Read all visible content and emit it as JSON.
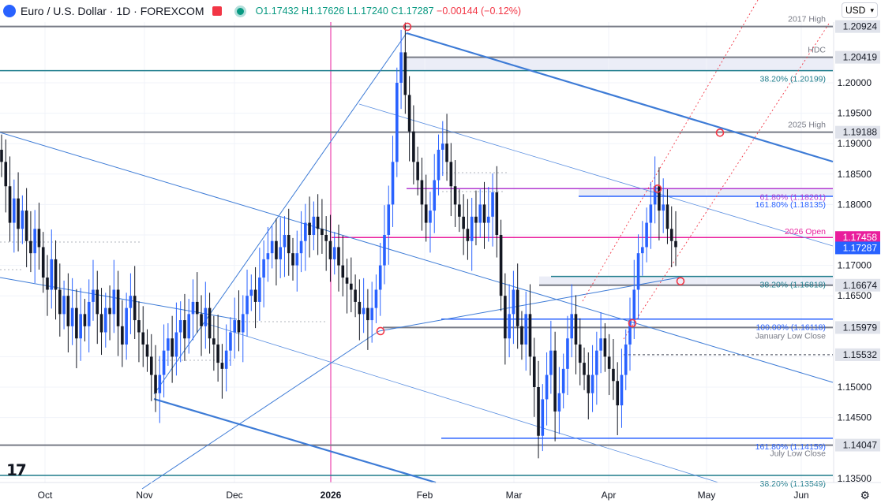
{
  "header": {
    "symbol": "Euro / U.S. Dollar · 1D · FOREXCOM",
    "open": "O1.17432",
    "high": "H1.17626",
    "low": "L1.17240",
    "close": "C1.17287",
    "change": "−0.00144 (−0.12%)",
    "currency": "USD"
  },
  "colors": {
    "up": "#2962ff",
    "down": "#131722",
    "magenta": "#e91e9c",
    "teal": "#1e7c8c",
    "level_gray": "#787b86",
    "trend_blue": "#3d7bd6"
  },
  "chart_data": {
    "type": "candlestick",
    "title": "",
    "ylim": [
      1.132,
      1.211
    ],
    "x_labels": [
      "Oct",
      "Nov",
      "Dec",
      "2026",
      "Feb",
      "Mar",
      "Apr",
      "May",
      "Jun"
    ],
    "y_ticks": [
      1.135,
      1.145,
      1.15,
      1.155,
      1.165,
      1.17,
      1.175,
      1.18,
      1.185,
      1.19,
      1.195,
      1.2
    ],
    "last_price": 1.17287,
    "levels": [
      {
        "price": 1.20924,
        "label": "1.20924",
        "note": "2017 High",
        "color": "#787b86"
      },
      {
        "price": 1.20419,
        "label": "1.20419",
        "note": "HDC",
        "color": "#787b86"
      },
      {
        "price": 1.20199,
        "label": "",
        "note": "38.20% (1.20199)",
        "color": "#1e7c8c"
      },
      {
        "price": 1.19188,
        "label": "1.19188",
        "note": "2025 High",
        "color": "#787b86"
      },
      {
        "price": 1.18261,
        "label": "",
        "note": "61.80% (1.18261)",
        "color": "#b23ad0"
      },
      {
        "price": 1.18135,
        "label": "",
        "note": "161.80% (1.18135)",
        "color": "#2962ff"
      },
      {
        "price": 1.17458,
        "label": "1.17458",
        "note": "2026 Open",
        "color": "#e91e9c"
      },
      {
        "price": 1.16818,
        "label": "",
        "note": "38.20% (1.16818)",
        "color": "#1e7c8c"
      },
      {
        "price": 1.16674,
        "label": "1.16674",
        "note": "",
        "color": "#787b86"
      },
      {
        "price": 1.16118,
        "label": "",
        "note": "100.00% (1.16118)",
        "color": "#2962ff"
      },
      {
        "price": 1.15979,
        "label": "1.15979",
        "note": "January Low Close",
        "color": "#787b86"
      },
      {
        "price": 1.15532,
        "label": "1.15532",
        "note": "",
        "color": "#787b86"
      },
      {
        "price": 1.14159,
        "label": "",
        "note": "161.80% (1.14159)",
        "color": "#2962ff"
      },
      {
        "price": 1.14047,
        "label": "1.14047",
        "note": "July Low Close",
        "color": "#787b86"
      },
      {
        "price": 1.13549,
        "label": "",
        "note": "38.20% (1.13549)",
        "color": "#1e7c8c"
      }
    ],
    "price_series": [
      1.187,
      1.183,
      1.177,
      1.181,
      1.176,
      1.179,
      1.174,
      1.172,
      1.176,
      1.173,
      1.168,
      1.166,
      1.171,
      1.166,
      1.162,
      1.165,
      1.16,
      1.163,
      1.158,
      1.162,
      1.16,
      1.164,
      1.166,
      1.162,
      1.159,
      1.163,
      1.162,
      1.166,
      1.16,
      1.157,
      1.163,
      1.165,
      1.161,
      1.159,
      1.157,
      1.155,
      1.152,
      1.149,
      1.152,
      1.156,
      1.158,
      1.155,
      1.159,
      1.161,
      1.158,
      1.162,
      1.164,
      1.162,
      1.16,
      1.163,
      1.158,
      1.157,
      1.154,
      1.153,
      1.156,
      1.159,
      1.161,
      1.159,
      1.162,
      1.165,
      1.166,
      1.164,
      1.168,
      1.171,
      1.172,
      1.174,
      1.171,
      1.173,
      1.175,
      1.172,
      1.17,
      1.172,
      1.174,
      1.177,
      1.175,
      1.178,
      1.176,
      1.175,
      1.174,
      1.171,
      1.173,
      1.17,
      1.168,
      1.167,
      1.166,
      1.164,
      1.162,
      1.163,
      1.161,
      1.163,
      1.166,
      1.17,
      1.175,
      1.18,
      1.187,
      1.2,
      1.205,
      1.198,
      1.192,
      1.187,
      1.184,
      1.18,
      1.177,
      1.179,
      1.184,
      1.189,
      1.19,
      1.187,
      1.183,
      1.18,
      1.178,
      1.176,
      1.174,
      1.178,
      1.177,
      1.18,
      1.177,
      1.178,
      1.182,
      1.175,
      1.165,
      1.158,
      1.162,
      1.166,
      1.16,
      1.157,
      1.162,
      1.155,
      1.15,
      1.142,
      1.148,
      1.152,
      1.156,
      1.146,
      1.149,
      1.153,
      1.158,
      1.162,
      1.157,
      1.154,
      1.152,
      1.149,
      1.152,
      1.156,
      1.158,
      1.155,
      1.153,
      1.151,
      1.147,
      1.152,
      1.157,
      1.161,
      1.166,
      1.172,
      1.173,
      1.177,
      1.18,
      1.183,
      1.179,
      1.18,
      1.176,
      1.174,
      1.173
    ],
    "annotations": [
      {
        "x": "2026-01-23",
        "price": 1.2092,
        "shape": "circle"
      },
      {
        "x": "2026-01-15",
        "price": 1.1592,
        "shape": "circle"
      },
      {
        "x": "2026-04-15",
        "price": 1.1826,
        "shape": "circle"
      },
      {
        "x": "2026-04-22",
        "price": 1.1674,
        "shape": "circle"
      },
      {
        "x": "2026-04-07",
        "price": 1.1605,
        "shape": "circle"
      },
      {
        "x": "2026-05-01",
        "price": 1.1918,
        "shape": "circle"
      }
    ],
    "vertical_line": {
      "x": "2026-01-01",
      "color": "#e91e9c"
    }
  }
}
